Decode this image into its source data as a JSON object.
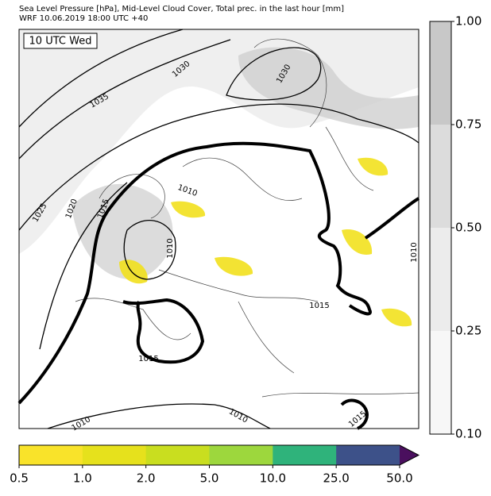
{
  "header": {
    "line1": "Sea Level Pressure [hPa], Mid-Level Cloud Cover, Total prec. in the last hour [mm]",
    "line2": "WRF 10.06.2019 18:00 UTC +40"
  },
  "map": {
    "time_label": "10 UTC Wed",
    "contour_labels": [
      1030,
      1035,
      1030,
      1025,
      1020,
      1015,
      1010,
      1010,
      1015,
      1015,
      1010,
      1010,
      1015,
      1010
    ]
  },
  "cloud_colorbar": {
    "colors": [
      "#f7f7f7",
      "#ececec",
      "#dcdcdc",
      "#c8c8c8"
    ],
    "ticks": [
      {
        "value": 0.1,
        "label": "0.10"
      },
      {
        "value": 0.25,
        "label": "0.25"
      },
      {
        "value": 0.5,
        "label": "0.50"
      },
      {
        "value": 0.75,
        "label": "0.75"
      },
      {
        "value": 1,
        "label": "1.00"
      }
    ]
  },
  "precip_colorbar": {
    "colors": [
      "#f9e32a",
      "#e6e11c",
      "#c9de1f",
      "#9dd73d",
      "#2fb37b",
      "#3d5189",
      "#4a0f5e"
    ],
    "ticks": [
      0.5,
      {
        "value": 1,
        "label": "1.0"
      },
      {
        "value": 2,
        "label": "2.0"
      },
      {
        "value": 5,
        "label": "5.0"
      },
      {
        "value": 10,
        "label": "10.0"
      },
      {
        "value": 25,
        "label": "25.0"
      },
      {
        "value": 50,
        "label": "50.0"
      }
    ]
  }
}
